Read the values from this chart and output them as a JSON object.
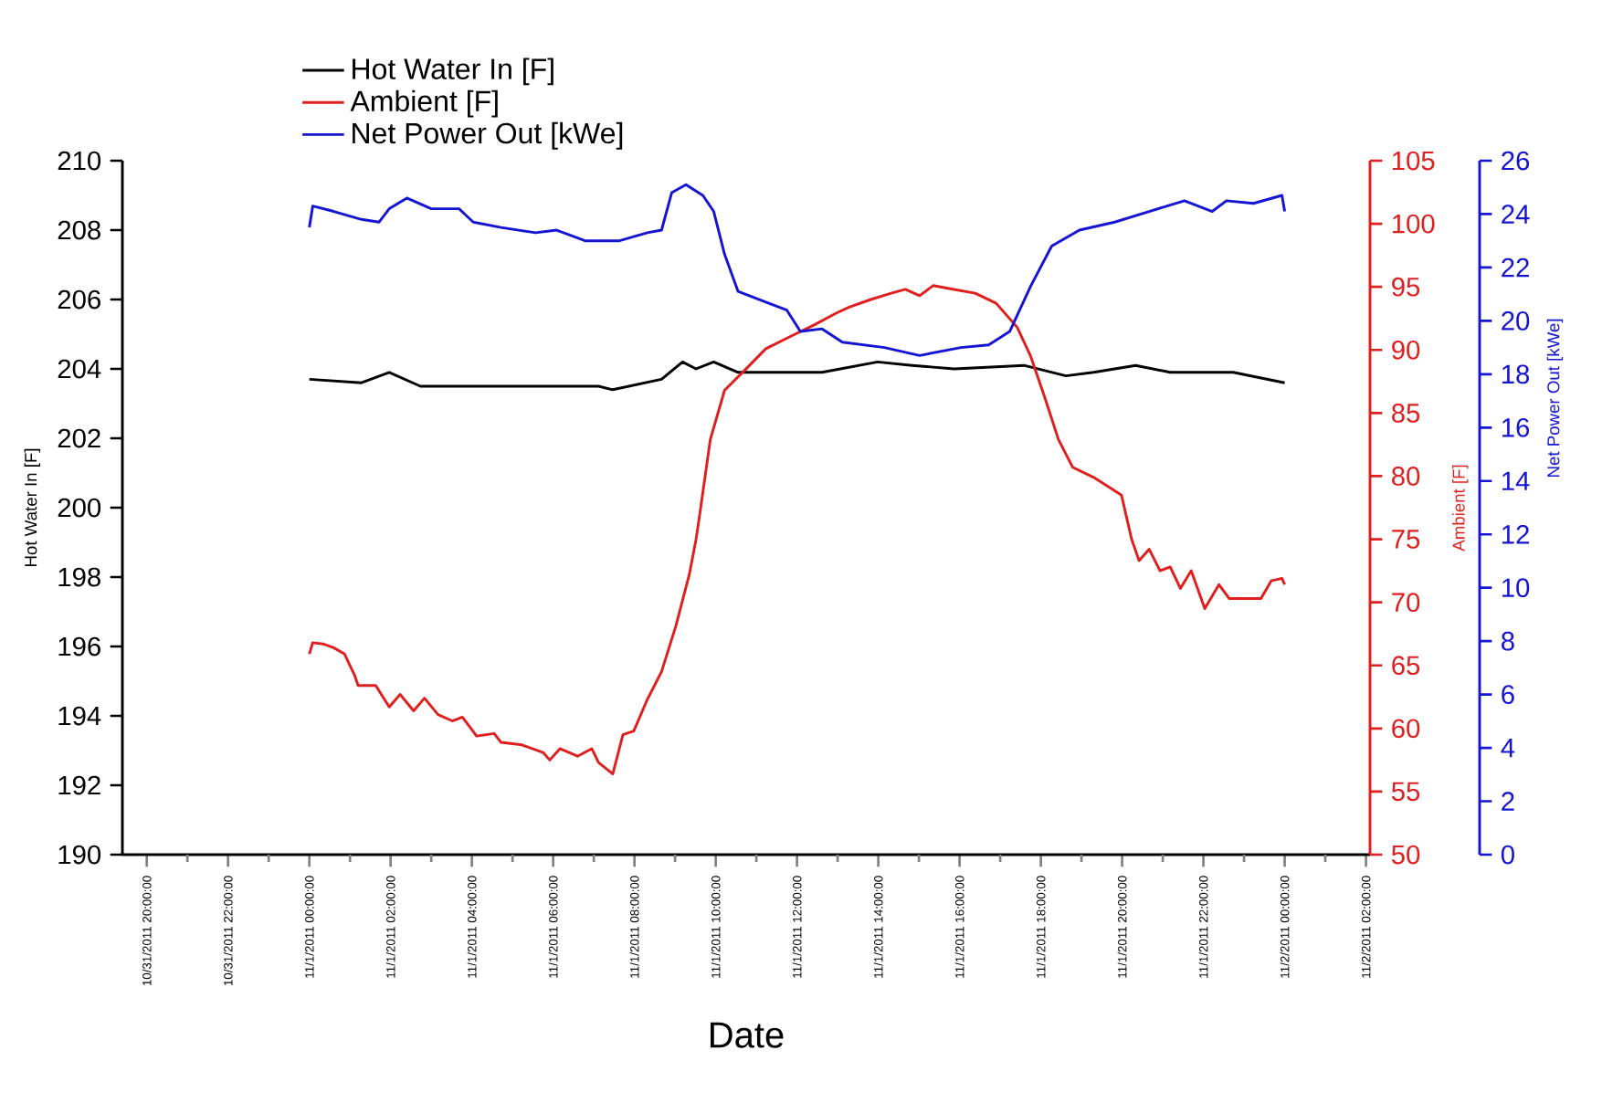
{
  "chart_data": {
    "type": "line",
    "xlabel": "Date",
    "ylabel": "Hot Water In [F]",
    "y2label": "Ambient [F]",
    "y3label": "Net Power Out [kWe]",
    "xlim": [
      "2011-10-31T19:24",
      "2011-11-02T02:06"
    ],
    "xticks": [
      {
        "value": "2011-10-31T20:00",
        "label": "10/31/2011 20:00:00"
      },
      {
        "value": "2011-10-31T21:00",
        "label": null
      },
      {
        "value": "2011-10-31T22:00",
        "label": "10/31/2011 22:00:00"
      },
      {
        "value": "2011-10-31T23:00",
        "label": null
      },
      {
        "value": "2011-11-01T00:00",
        "label": "11/1/2011 00:00:00"
      },
      {
        "value": "2011-11-01T01:00",
        "label": null
      },
      {
        "value": "2011-11-01T02:00",
        "label": "11/1/2011 02:00:00"
      },
      {
        "value": "2011-11-01T03:00",
        "label": null
      },
      {
        "value": "2011-11-01T04:00",
        "label": "11/1/2011 04:00:00"
      },
      {
        "value": "2011-11-01T05:00",
        "label": null
      },
      {
        "value": "2011-11-01T06:00",
        "label": "11/1/2011 06:00:00"
      },
      {
        "value": "2011-11-01T07:00",
        "label": null
      },
      {
        "value": "2011-11-01T08:00",
        "label": "11/1/2011 08:00:00"
      },
      {
        "value": "2011-11-01T09:00",
        "label": null
      },
      {
        "value": "2011-11-01T10:00",
        "label": "11/1/2011 10:00:00"
      },
      {
        "value": "2011-11-01T11:00",
        "label": null
      },
      {
        "value": "2011-11-01T12:00",
        "label": "11/1/2011 12:00:00"
      },
      {
        "value": "2011-11-01T13:00",
        "label": null
      },
      {
        "value": "2011-11-01T14:00",
        "label": "11/1/2011 14:00:00"
      },
      {
        "value": "2011-11-01T15:00",
        "label": null
      },
      {
        "value": "2011-11-01T16:00",
        "label": "11/1/2011 16:00:00"
      },
      {
        "value": "2011-11-01T17:00",
        "label": null
      },
      {
        "value": "2011-11-01T18:00",
        "label": "11/1/2011 18:00:00"
      },
      {
        "value": "2011-11-01T19:00",
        "label": null
      },
      {
        "value": "2011-11-01T20:00",
        "label": "11/1/2011 20:00:00"
      },
      {
        "value": "2011-11-01T21:00",
        "label": null
      },
      {
        "value": "2011-11-01T22:00",
        "label": "11/1/2011 22:00:00"
      },
      {
        "value": "2011-11-01T23:00",
        "label": null
      },
      {
        "value": "2011-11-02T00:00",
        "label": "11/2/2011 00:00:00"
      },
      {
        "value": "2011-11-02T01:00",
        "label": null
      },
      {
        "value": "2011-11-02T02:00",
        "label": "11/2/2011 02:00:00"
      }
    ],
    "ylim": [
      190,
      210
    ],
    "yticks": [
      190,
      192,
      194,
      196,
      198,
      200,
      202,
      204,
      206,
      208,
      210
    ],
    "y2lim": [
      50,
      105
    ],
    "y2ticks": [
      50,
      55,
      60,
      65,
      70,
      75,
      80,
      85,
      90,
      95,
      100,
      105
    ],
    "y3lim": [
      0,
      26
    ],
    "y3ticks": [
      0,
      2,
      4,
      6,
      8,
      10,
      12,
      14,
      16,
      18,
      20,
      22,
      24,
      26
    ],
    "legend": "top",
    "series": [
      {
        "name": "Hot Water In [F]",
        "color": "#000000",
        "x": [
          "2011-11-01T00:00",
          "2011-11-01T01:17",
          "2011-11-01T01:58",
          "2011-11-01T02:44",
          "2011-11-01T04:43",
          "2011-11-01T07:07",
          "2011-11-01T07:28",
          "2011-11-01T08:40",
          "2011-11-01T09:11",
          "2011-11-01T09:31",
          "2011-11-01T09:57",
          "2011-11-01T10:33",
          "2011-11-01T11:35",
          "2011-11-01T12:37",
          "2011-11-01T13:59",
          "2011-11-01T14:50",
          "2011-11-01T15:52",
          "2011-11-01T17:35",
          "2011-11-01T18:37",
          "2011-11-01T19:18",
          "2011-11-01T20:20",
          "2011-11-01T21:11",
          "2011-11-01T22:44",
          "2011-11-02T00:00"
        ],
        "values": [
          203.7,
          203.6,
          203.9,
          203.5,
          203.5,
          203.5,
          203.4,
          203.7,
          204.2,
          204.0,
          204.2,
          203.9,
          203.9,
          203.9,
          204.2,
          204.1,
          204.0,
          204.1,
          203.8,
          203.9,
          204.1,
          203.9,
          203.9,
          203.6
        ]
      },
      {
        "name": "Ambient [F]",
        "color": "#e01e1e",
        "axis": "y2",
        "x": [
          "2011-11-01T00:00",
          "2011-11-01T00:05",
          "2011-11-01T00:20",
          "2011-11-01T00:36",
          "2011-11-01T00:52",
          "2011-11-01T01:07",
          "2011-11-01T01:12",
          "2011-11-01T01:38",
          "2011-11-01T01:58",
          "2011-11-01T02:14",
          "2011-11-01T02:34",
          "2011-11-01T02:50",
          "2011-11-01T03:10",
          "2011-11-01T03:31",
          "2011-11-01T03:46",
          "2011-11-01T04:07",
          "2011-11-01T04:33",
          "2011-11-01T04:43",
          "2011-11-01T05:14",
          "2011-11-01T05:45",
          "2011-11-01T05:55",
          "2011-11-01T06:10",
          "2011-11-01T06:36",
          "2011-11-01T06:57",
          "2011-11-01T07:07",
          "2011-11-01T07:28",
          "2011-11-01T07:43",
          "2011-11-01T07:59",
          "2011-11-01T08:19",
          "2011-11-01T08:40",
          "2011-11-01T09:01",
          "2011-11-01T09:21",
          "2011-11-01T09:31",
          "2011-11-01T09:37",
          "2011-11-01T09:52",
          "2011-11-01T10:13",
          "2011-11-01T10:43",
          "2011-11-01T11:14",
          "2011-11-01T11:55",
          "2011-11-01T12:26",
          "2011-11-01T12:57",
          "2011-11-01T13:17",
          "2011-11-01T13:49",
          "2011-11-01T14:19",
          "2011-11-01T14:40",
          "2011-11-01T15:01",
          "2011-11-01T15:21",
          "2011-11-01T15:52",
          "2011-11-01T16:23",
          "2011-11-01T16:54",
          "2011-11-01T17:25",
          "2011-11-01T17:45",
          "2011-11-01T18:06",
          "2011-11-01T18:26",
          "2011-11-01T18:47",
          "2011-11-01T19:18",
          "2011-11-01T19:59",
          "2011-11-01T20:14",
          "2011-11-01T20:25",
          "2011-11-01T20:40",
          "2011-11-01T20:56",
          "2011-11-01T21:11",
          "2011-11-01T21:26",
          "2011-11-01T21:42",
          "2011-11-01T22:02",
          "2011-11-01T22:23",
          "2011-11-01T22:38",
          "2011-11-01T23:25",
          "2011-11-01T23:40",
          "2011-11-01T23:56",
          "2011-11-02T00:00"
        ],
        "values": [
          65.9,
          66.8,
          66.7,
          66.4,
          65.9,
          64.2,
          63.4,
          63.4,
          61.7,
          62.7,
          61.4,
          62.4,
          61.1,
          60.6,
          60.9,
          59.4,
          59.6,
          58.9,
          58.7,
          58.1,
          57.5,
          58.4,
          57.8,
          58.4,
          57.3,
          56.4,
          59.5,
          59.8,
          62.3,
          64.5,
          68.1,
          72.2,
          75.0,
          77.2,
          82.9,
          86.8,
          88.4,
          90.1,
          91.2,
          92.0,
          92.9,
          93.4,
          94.0,
          94.5,
          94.8,
          94.3,
          95.1,
          94.8,
          94.5,
          93.7,
          91.8,
          89.5,
          86.2,
          82.9,
          80.7,
          79.9,
          78.5,
          75.0,
          73.3,
          74.2,
          72.5,
          72.8,
          71.1,
          72.5,
          69.5,
          71.4,
          70.3,
          70.3,
          71.7,
          71.9,
          71.4
        ]
      },
      {
        "name": "Net Power Out [kWe]",
        "color": "#1414d2",
        "axis": "y3",
        "x": [
          "2011-11-01T00:00",
          "2011-11-01T00:05",
          "2011-11-01T00:36",
          "2011-11-01T01:17",
          "2011-11-01T01:43",
          "2011-11-01T01:58",
          "2011-11-01T02:24",
          "2011-11-01T03:00",
          "2011-11-01T03:41",
          "2011-11-01T04:02",
          "2011-11-01T04:43",
          "2011-11-01T05:34",
          "2011-11-01T06:05",
          "2011-11-01T06:47",
          "2011-11-01T07:38",
          "2011-11-01T08:19",
          "2011-11-01T08:40",
          "2011-11-01T08:55",
          "2011-11-01T09:16",
          "2011-11-01T09:41",
          "2011-11-01T09:57",
          "2011-11-01T10:13",
          "2011-11-01T10:33",
          "2011-11-01T11:14",
          "2011-11-01T11:45",
          "2011-11-01T12:05",
          "2011-11-01T12:37",
          "2011-11-01T13:07",
          "2011-11-01T14:09",
          "2011-11-01T15:01",
          "2011-11-01T16:02",
          "2011-11-01T16:43",
          "2011-11-01T17:14",
          "2011-11-01T17:45",
          "2011-11-01T18:16",
          "2011-11-01T18:57",
          "2011-11-01T19:49",
          "2011-11-01T20:40",
          "2011-11-01T21:32",
          "2011-11-01T22:13",
          "2011-11-01T22:34",
          "2011-11-01T23:14",
          "2011-11-01T23:56",
          "2011-11-02T00:00"
        ],
        "values": [
          23.5,
          24.3,
          24.1,
          23.8,
          23.7,
          24.2,
          24.6,
          24.2,
          24.2,
          23.7,
          23.5,
          23.3,
          23.4,
          23.0,
          23.0,
          23.3,
          23.4,
          24.8,
          25.1,
          24.7,
          24.1,
          22.5,
          21.1,
          20.7,
          20.4,
          19.6,
          19.7,
          19.2,
          19.0,
          18.7,
          19.0,
          19.1,
          19.6,
          21.3,
          22.8,
          23.4,
          23.7,
          24.1,
          24.5,
          24.1,
          24.5,
          24.4,
          24.7,
          24.1
        ]
      }
    ]
  }
}
